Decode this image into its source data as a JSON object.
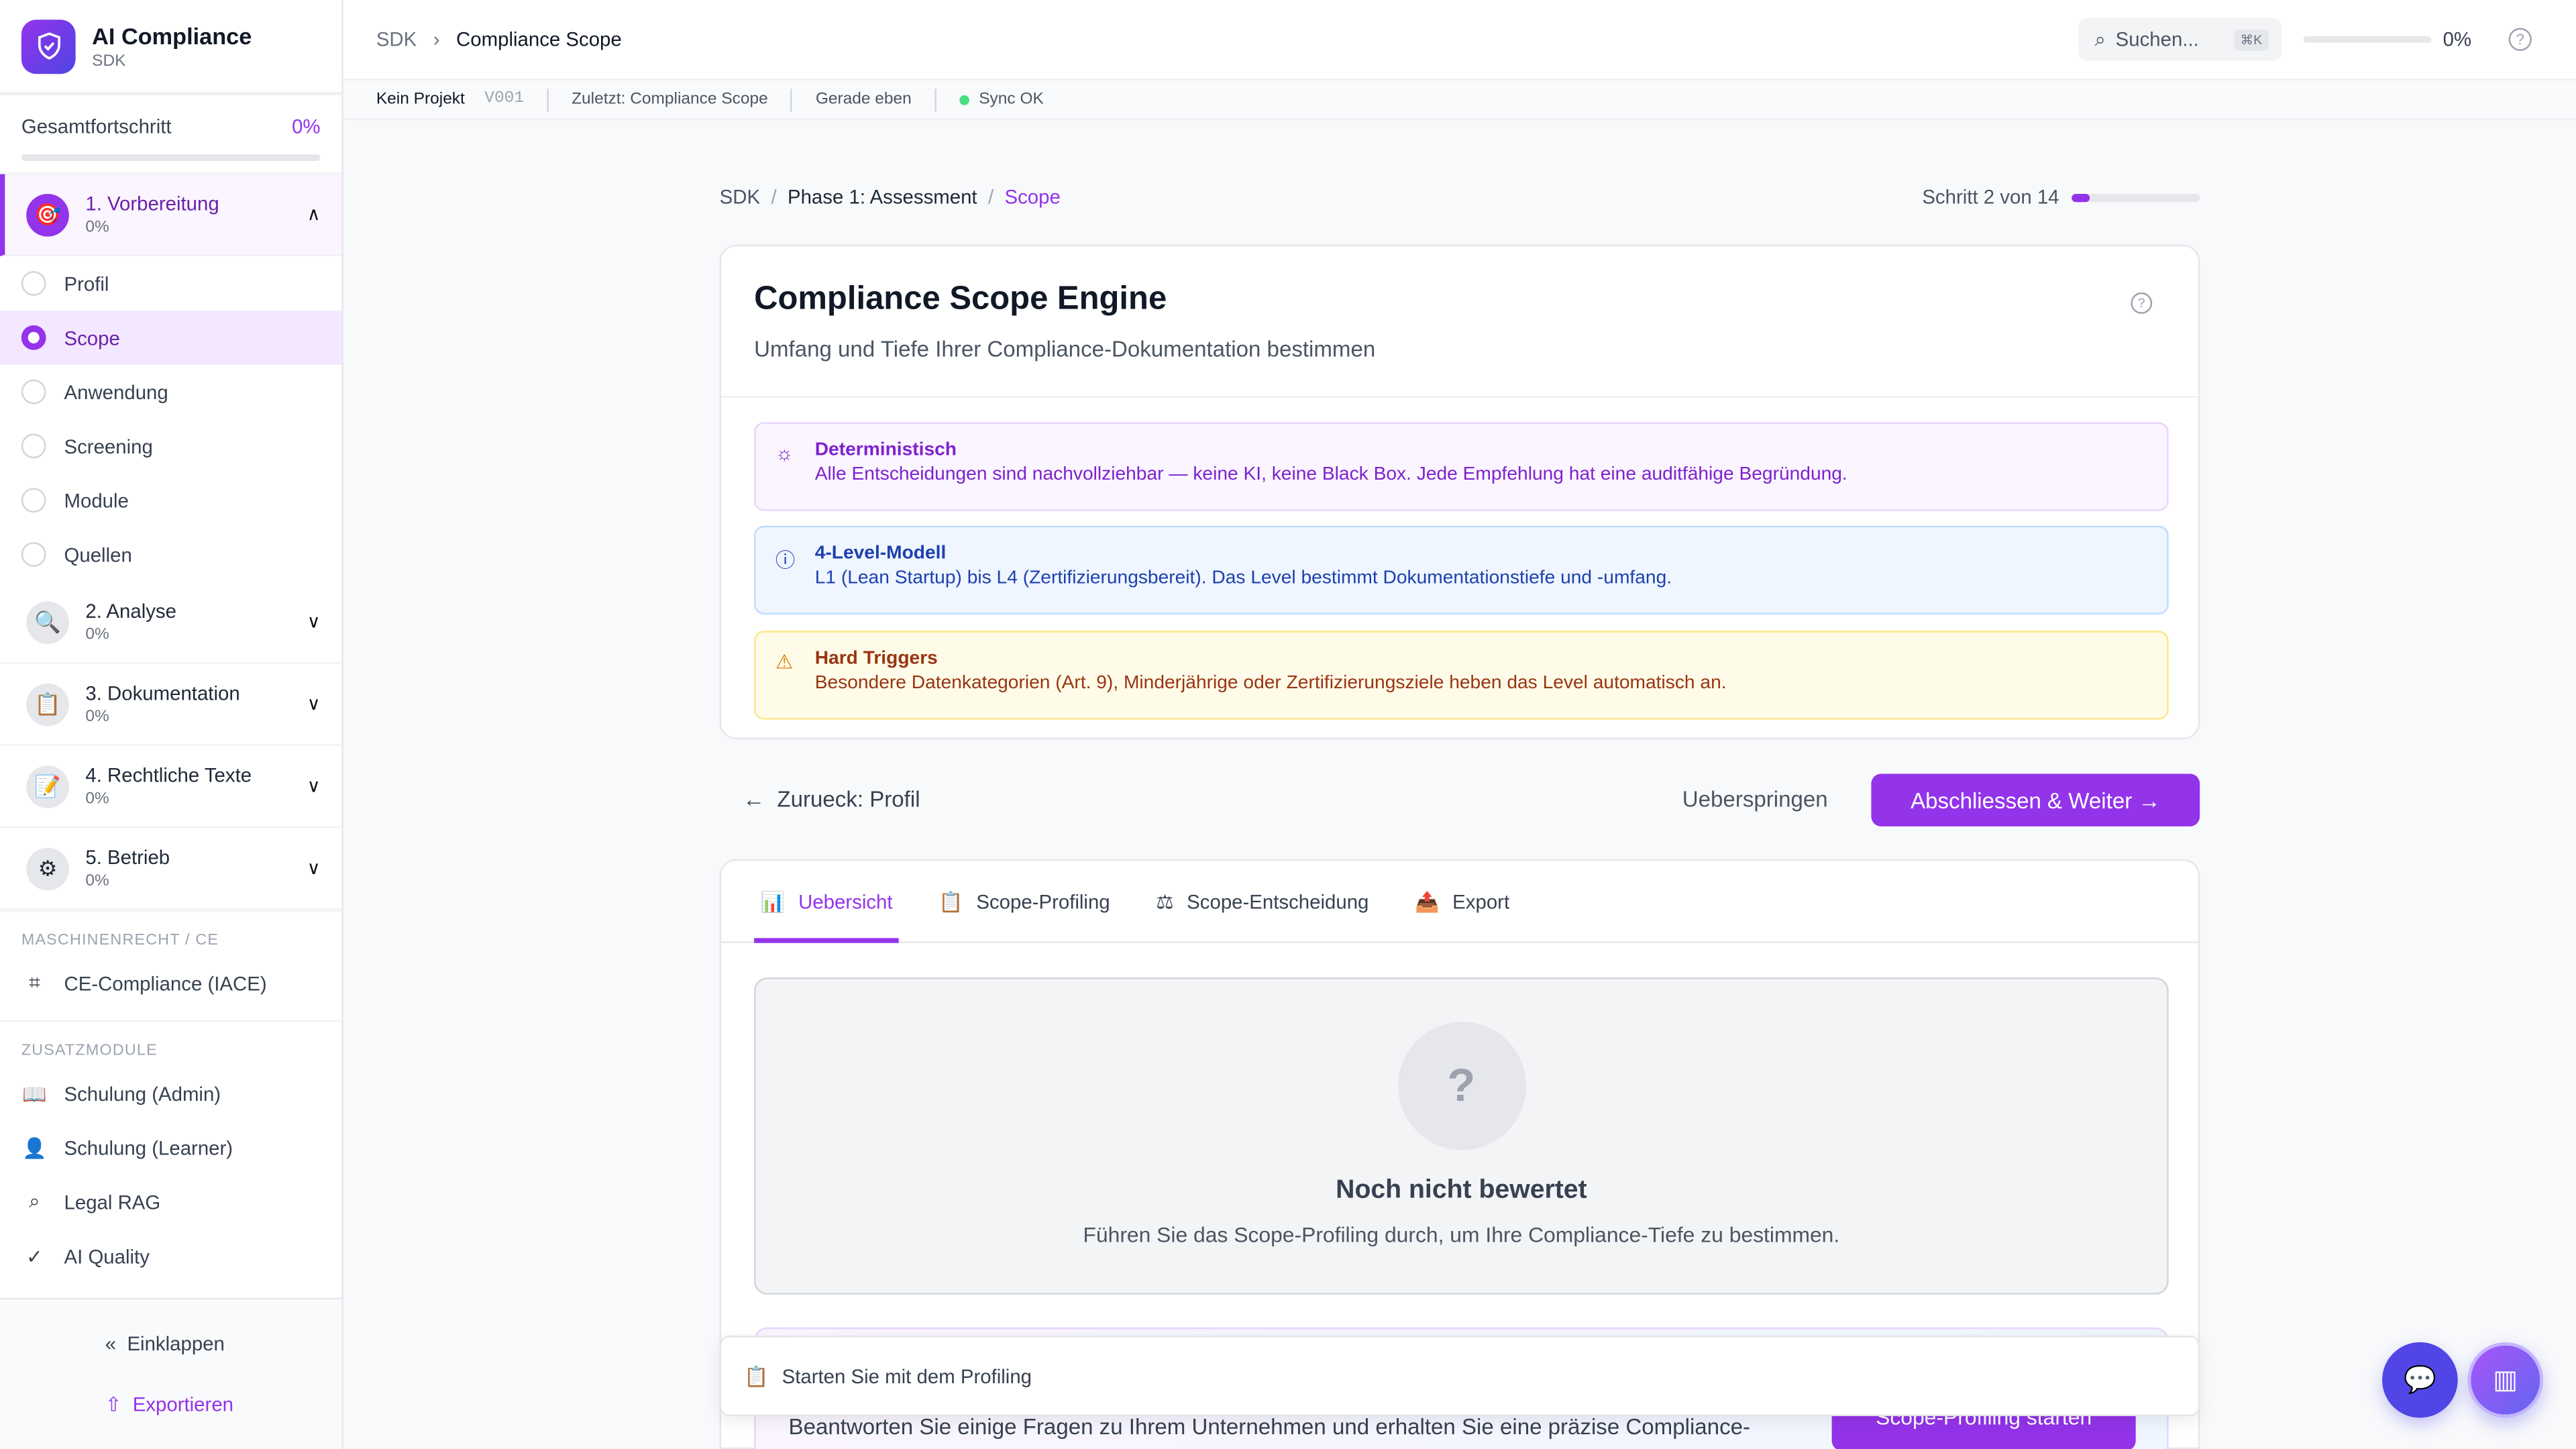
{
  "app": {
    "title": "AI Compliance",
    "subtitle": "SDK"
  },
  "progress": {
    "label": "Gesamtfortschritt",
    "value": "0%",
    "fraction": 0
  },
  "phases": [
    {
      "label": "1. Vorbereitung",
      "pct": "0%",
      "icon": "target-icon",
      "glyph": "🎯",
      "expanded": true
    },
    {
      "label": "2. Analyse",
      "pct": "0%",
      "icon": "magnifier-icon",
      "glyph": "🔍"
    },
    {
      "label": "3. Dokumentation",
      "pct": "0%",
      "icon": "clipboard-icon",
      "glyph": "📋"
    },
    {
      "label": "4. Rechtliche Texte",
      "pct": "0%",
      "icon": "memo-icon",
      "glyph": "📝"
    },
    {
      "label": "5. Betrieb",
      "pct": "0%",
      "icon": "gear-icon",
      "glyph": "⚙"
    }
  ],
  "steps": [
    "Profil",
    "Scope",
    "Anwendung",
    "Screening",
    "Module",
    "Quellen"
  ],
  "selected_step": "Scope",
  "sections": {
    "machine": "MASCHINENRECHT / CE",
    "extra": "ZUSATZMODULE"
  },
  "machine_items": [
    {
      "label": "CE-Compliance (IACE)",
      "icon": "chip-icon"
    }
  ],
  "extra_items": [
    {
      "label": "Schulung (Admin)",
      "icon": "book-icon"
    },
    {
      "label": "Schulung (Learner)",
      "icon": "user-icon"
    },
    {
      "label": "Legal RAG",
      "icon": "search-icon"
    },
    {
      "label": "AI Quality",
      "icon": "check-circle-icon"
    }
  ],
  "footer": {
    "collapse": "Einklappen",
    "export": "Exportieren"
  },
  "header": {
    "crumb_root": "SDK",
    "crumb_current": "Compliance Scope",
    "search_placeholder": "Suchen...",
    "shortcut": "⌘K",
    "progress": "0%"
  },
  "subbar": {
    "project": "Kein Projekt",
    "version": "V001",
    "last": "Zuletzt: Compliance Scope",
    "time": "Gerade eben",
    "sync": "Sync OK"
  },
  "breadcrumb": {
    "a": "SDK",
    "b": "Phase 1: Assessment",
    "c": "Scope",
    "sep": "/"
  },
  "step": {
    "label": "Schritt 2 von 14",
    "current": 2,
    "total": 14
  },
  "card": {
    "title": "Compliance Scope Engine",
    "description": "Umfang und Tiefe Ihrer Compliance-Dokumentation bestimmen"
  },
  "notes": [
    {
      "title": "Deterministisch",
      "text": "Alle Entscheidungen sind nachvollziehbar — keine KI, keine Black Box. Jede Empfehlung hat eine auditfähige Begründung."
    },
    {
      "title": "4-Level-Modell",
      "text": "L1 (Lean Startup) bis L4 (Zertifizierungsbereit). Das Level bestimmt Dokumentationstiefe und -umfang."
    },
    {
      "title": "Hard Triggers",
      "text": "Besondere Datenkategorien (Art. 9), Minderjährige oder Zertifizierungsziele heben das Level automatisch an."
    }
  ],
  "nav": {
    "back": "Zurueck: Profil",
    "skip": "Ueberspringen",
    "next": "Abschliessen & Weiter"
  },
  "tabs": [
    {
      "label": "Uebersicht",
      "glyph": "📊"
    },
    {
      "label": "Scope-Profiling",
      "glyph": "📋"
    },
    {
      "label": "Scope-Entscheidung",
      "glyph": "⚖"
    },
    {
      "label": "Export",
      "glyph": "📤"
    }
  ],
  "empty": {
    "mark": "?",
    "title": "Noch nicht bewertet",
    "text": "Führen Sie das Scope-Profiling durch, um Ihre Compliance-Tiefe zu bestimmen."
  },
  "promo": {
    "text": "Beantworten Sie einige Fragen zu Ihrem Unternehmen und erhalten Sie eine präzise Compliance-",
    "button": "Scope-Profiling starten"
  },
  "toast": {
    "text": "Starten Sie mit dem Profiling"
  },
  "colors": {
    "accent": "#9333ea",
    "indigo": "#4f46e5"
  }
}
